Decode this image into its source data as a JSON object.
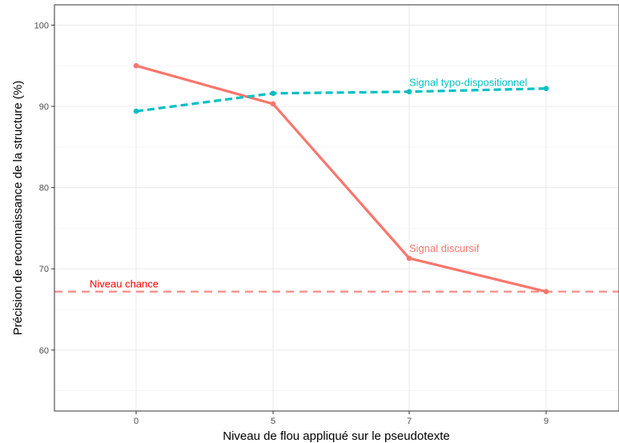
{
  "chart_data": {
    "type": "line",
    "title": "",
    "xlabel": "Niveau de flou appliqué sur le pseudotexte",
    "ylabel": "Précision de reconnaissance de la structure (%)",
    "categories": [
      "0",
      "5",
      "7",
      "9"
    ],
    "ylim": [
      52.5,
      102.5
    ],
    "yticks": [
      60,
      70,
      80,
      90,
      100
    ],
    "grid": true,
    "legend": "none",
    "series": [
      {
        "name": "Signal discursif",
        "values": [
          95.0,
          90.3,
          71.3,
          67.2
        ],
        "color": "#F8766D",
        "style": "solid"
      },
      {
        "name": "Signal typo-dispositionnel",
        "values": [
          89.4,
          91.6,
          91.8,
          92.2
        ],
        "color": "#00BFC4",
        "style": "dashed"
      }
    ],
    "reference_lines": [
      {
        "label": "Niveau chance",
        "value": 67.2,
        "color": "#F8766D",
        "label_color": "#FF0000",
        "style": "dashed"
      }
    ]
  }
}
